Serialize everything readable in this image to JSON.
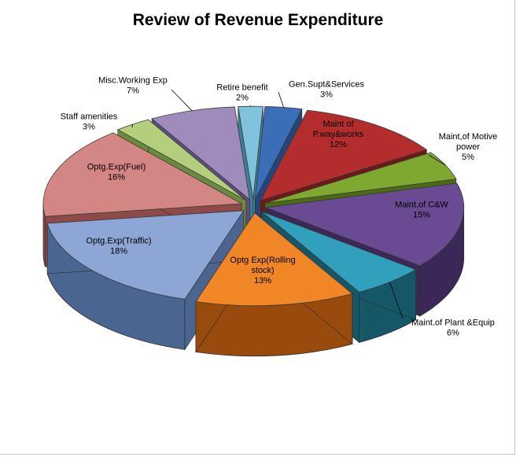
{
  "chart_data": {
    "type": "pie",
    "title": "Review of Revenue Expenditure",
    "slices": [
      {
        "label_lines": [
          "Gen.Supt&Services",
          "3%"
        ],
        "value": 3,
        "color": "#3a6fb8",
        "side_color": "#22467a"
      },
      {
        "label_lines": [
          "Maint of",
          "P.way&works",
          "12%"
        ],
        "value": 12,
        "color": "#b32d2d",
        "side_color": "#6e1818"
      },
      {
        "label_lines": [
          "Maint,of Motive",
          "power",
          "5%"
        ],
        "value": 5,
        "color": "#7ea82f",
        "side_color": "#4b6a15"
      },
      {
        "label_lines": [
          "Maint.of C&W",
          "15%"
        ],
        "value": 15,
        "color": "#6a4a93",
        "side_color": "#3b2858"
      },
      {
        "label_lines": [
          "Maint.of Plant &Equip",
          "6%"
        ],
        "value": 6,
        "color": "#31a0bd",
        "side_color": "#155766"
      },
      {
        "label_lines": [
          "Optg Exp(Rolling",
          "stock)",
          "13%"
        ],
        "value": 13,
        "color": "#f08626",
        "side_color": "#984b0c"
      },
      {
        "label_lines": [
          "Optg.Exp(Traffic)",
          "18%"
        ],
        "value": 18,
        "color": "#8ea6d6",
        "side_color": "#4a6590"
      },
      {
        "label_lines": [
          "Optg.Exp(Fuel)",
          "16%"
        ],
        "value": 16,
        "color": "#d48684",
        "side_color": "#8e4a48"
      },
      {
        "label_lines": [
          "Staff amenities",
          "3%"
        ],
        "value": 3,
        "color": "#b3cf7e",
        "side_color": "#6c8a3e"
      },
      {
        "label_lines": [
          "Misc.Working Exp",
          "7%"
        ],
        "value": 7,
        "color": "#9f8cbd",
        "side_color": "#5e4d7e"
      },
      {
        "label_lines": [
          "Retire benefit",
          "2%"
        ],
        "value": 2,
        "color": "#7fc3df",
        "side_color": "#3f7f96"
      }
    ]
  }
}
